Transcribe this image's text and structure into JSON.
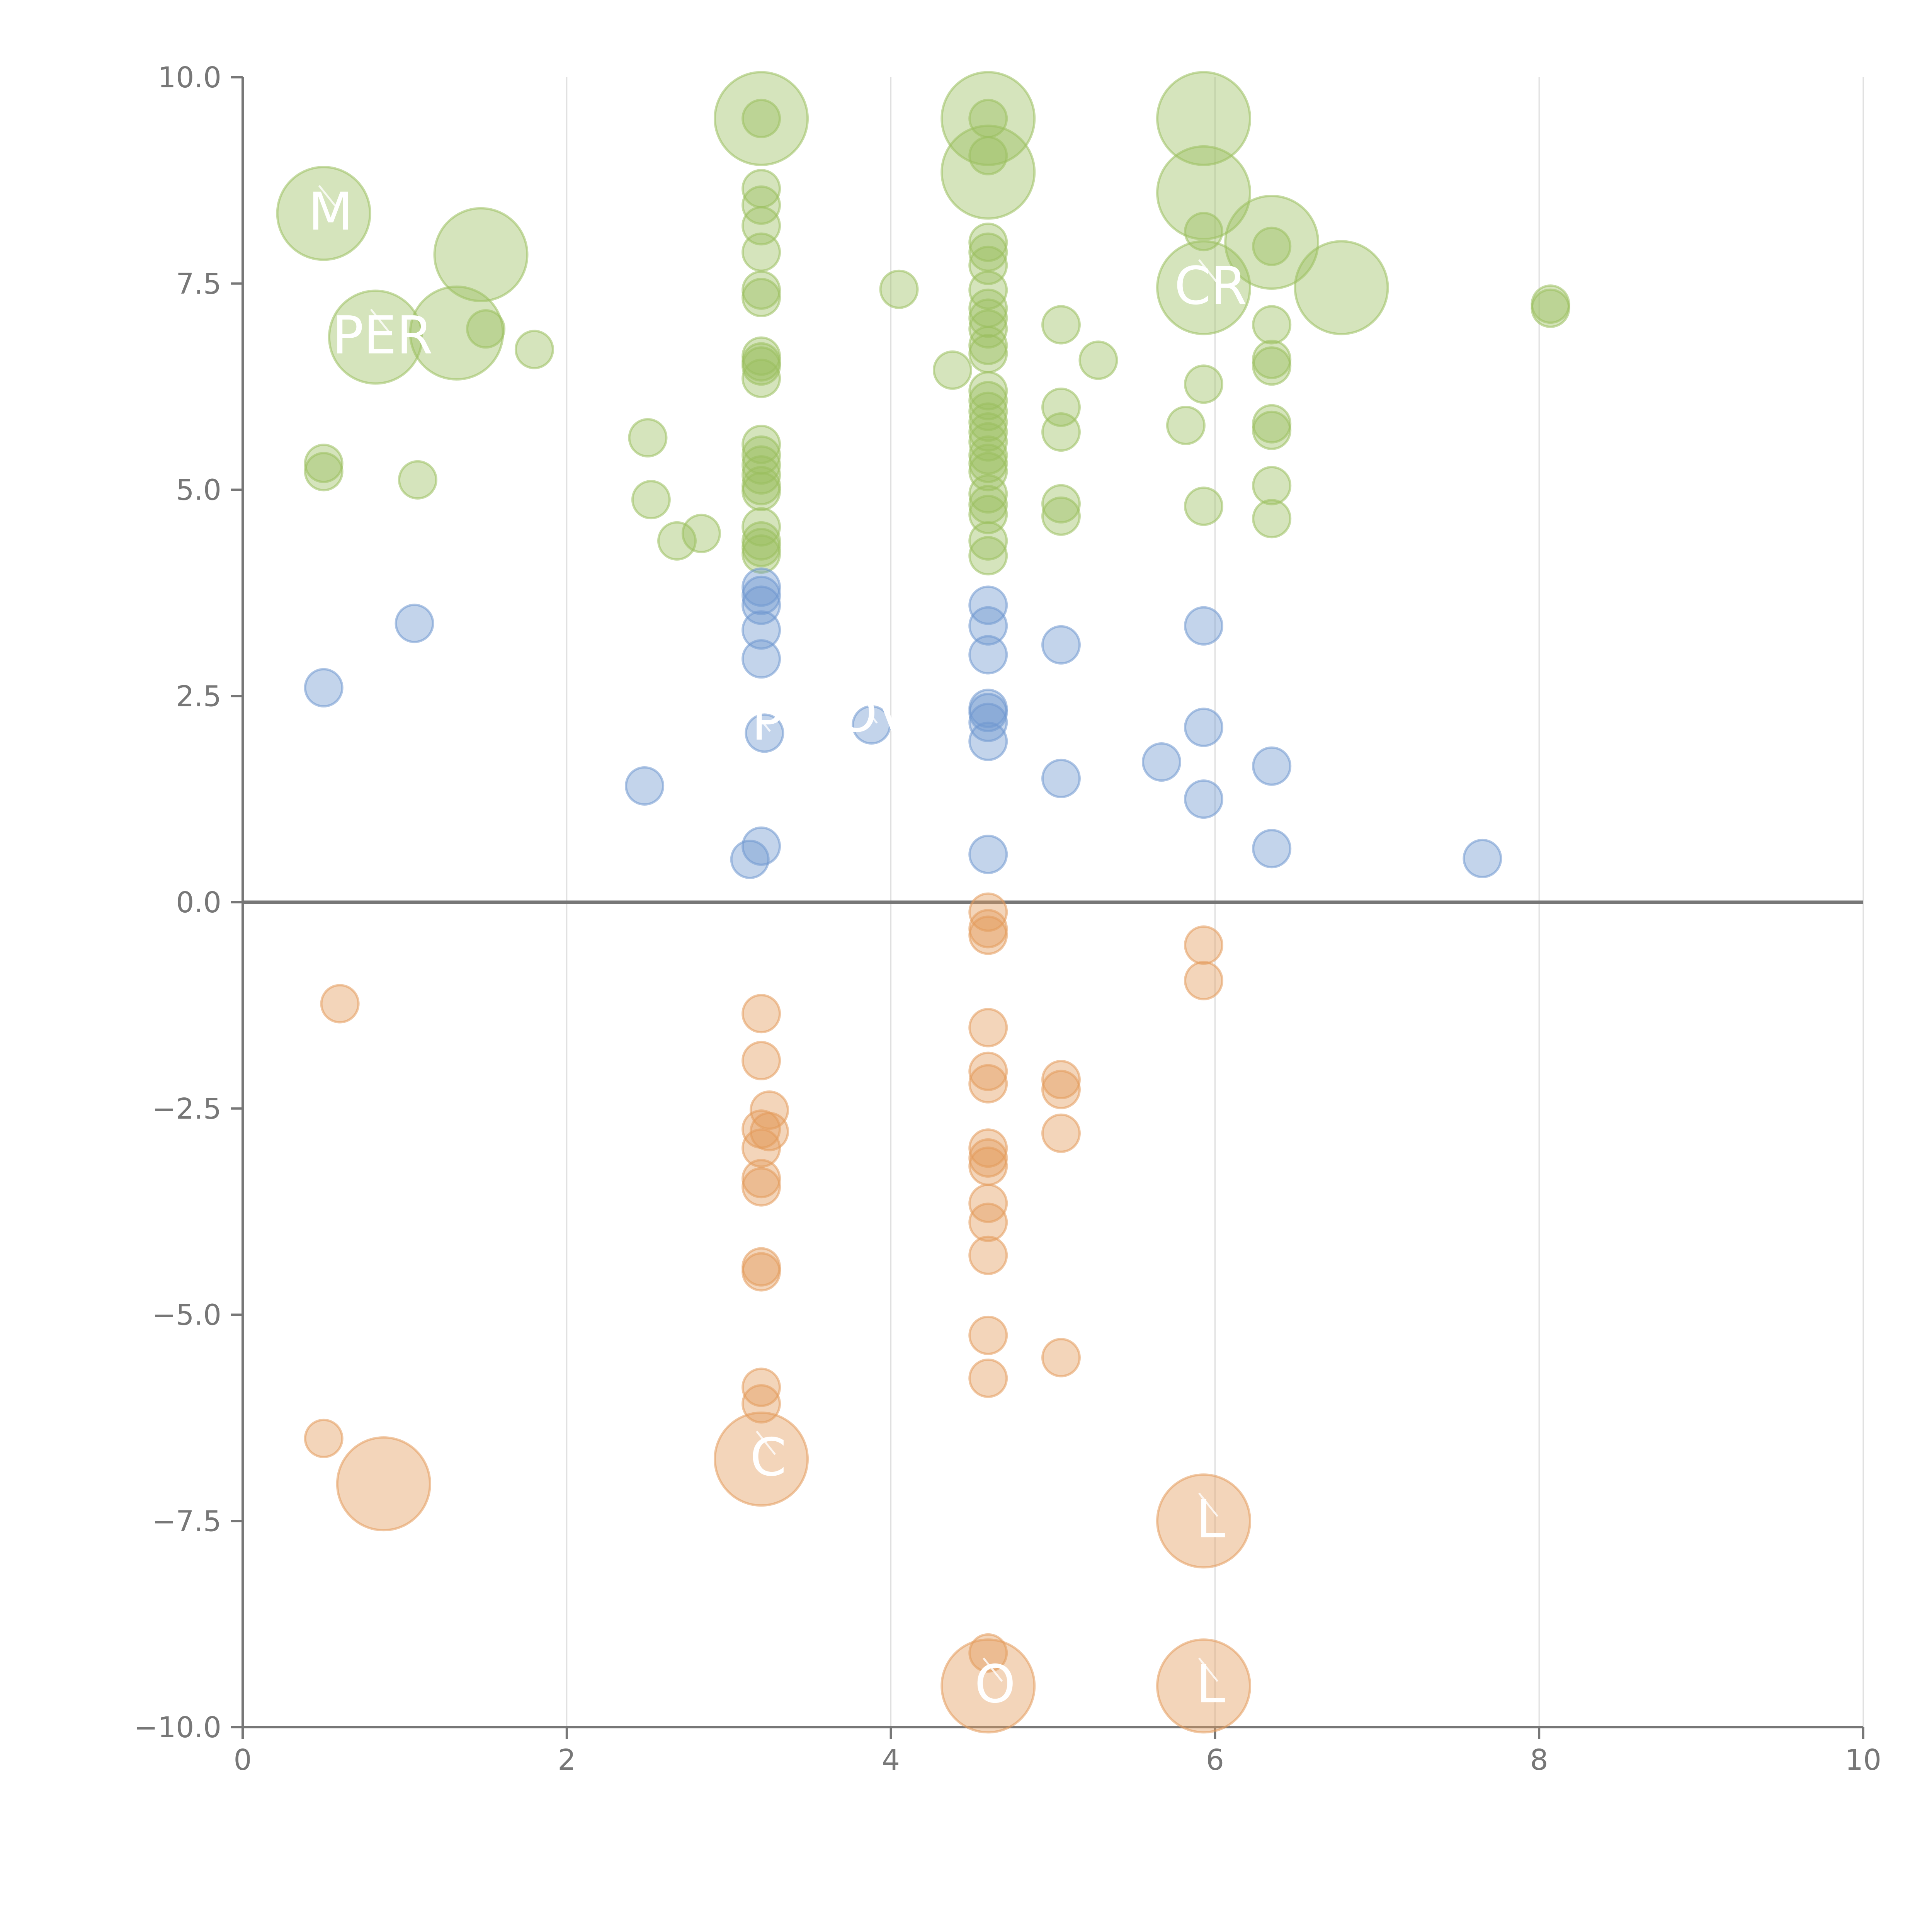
{
  "chart_data": {
    "type": "scatter",
    "title": "",
    "xlabel": "",
    "ylabel": "",
    "xlim": [
      0,
      10
    ],
    "ylim": [
      -10,
      10
    ],
    "x_ticks": [
      0,
      2,
      4,
      6,
      8,
      10
    ],
    "y_ticks": [
      10,
      7.5,
      5,
      2.5,
      0,
      -2.5,
      -5,
      -7.5,
      -10
    ],
    "x_tick_labels": [
      "0",
      "2",
      "4",
      "6",
      "8",
      "10"
    ],
    "y_tick_labels": [
      "10.0",
      "7.5",
      "5.0",
      "2.5",
      "0.0",
      "−2.5",
      "−5.0",
      "−7.5",
      "−10.0"
    ],
    "grid": "vertical gridlines at x ticks",
    "zero_line": 0,
    "legend": "none",
    "series": [
      {
        "color": "#9bbf5f",
        "points": [
          {
            "x": 0.5,
            "y": 8.35,
            "r": 2.5,
            "label": "M"
          },
          {
            "x": 0.82,
            "y": 6.85,
            "r": 2.5,
            "label": "PER"
          },
          {
            "x": 1.32,
            "y": 6.9,
            "r": 2.5
          },
          {
            "x": 1.47,
            "y": 7.85,
            "r": 2.5
          },
          {
            "x": 1.5,
            "y": 6.95
          },
          {
            "x": 1.8,
            "y": 6.7
          },
          {
            "x": 0.5,
            "y": 5.32
          },
          {
            "x": 0.5,
            "y": 5.22
          },
          {
            "x": 1.08,
            "y": 5.12
          },
          {
            "x": 2.5,
            "y": 5.63
          },
          {
            "x": 2.52,
            "y": 4.88
          },
          {
            "x": 2.68,
            "y": 4.38
          },
          {
            "x": 2.83,
            "y": 4.47
          },
          {
            "x": 3.2,
            "y": 9.5,
            "r": 2.5
          },
          {
            "x": 3.2,
            "y": 9.5
          },
          {
            "x": 3.2,
            "y": 8.65
          },
          {
            "x": 3.2,
            "y": 8.45
          },
          {
            "x": 3.2,
            "y": 8.2
          },
          {
            "x": 3.2,
            "y": 7.88
          },
          {
            "x": 3.2,
            "y": 7.42
          },
          {
            "x": 3.2,
            "y": 7.33
          },
          {
            "x": 3.2,
            "y": 6.62
          },
          {
            "x": 3.2,
            "y": 6.55
          },
          {
            "x": 3.2,
            "y": 6.5
          },
          {
            "x": 3.2,
            "y": 6.35
          },
          {
            "x": 3.2,
            "y": 5.55
          },
          {
            "x": 3.2,
            "y": 5.42
          },
          {
            "x": 3.2,
            "y": 5.3
          },
          {
            "x": 3.2,
            "y": 5.18
          },
          {
            "x": 3.2,
            "y": 5.05
          },
          {
            "x": 3.2,
            "y": 4.98
          },
          {
            "x": 3.2,
            "y": 4.55
          },
          {
            "x": 3.2,
            "y": 4.38
          },
          {
            "x": 3.2,
            "y": 4.3
          },
          {
            "x": 3.2,
            "y": 4.22
          },
          {
            "x": 4.05,
            "y": 7.43
          },
          {
            "x": 4.38,
            "y": 6.45
          },
          {
            "x": 4.6,
            "y": 9.5,
            "r": 2.5
          },
          {
            "x": 4.6,
            "y": 9.5
          },
          {
            "x": 4.6,
            "y": 8.85,
            "r": 2.5
          },
          {
            "x": 4.6,
            "y": 9.05
          },
          {
            "x": 4.6,
            "y": 8.0
          },
          {
            "x": 4.6,
            "y": 7.88
          },
          {
            "x": 4.6,
            "y": 7.72
          },
          {
            "x": 4.6,
            "y": 7.42
          },
          {
            "x": 4.6,
            "y": 7.2
          },
          {
            "x": 4.6,
            "y": 7.08
          },
          {
            "x": 4.6,
            "y": 6.95
          },
          {
            "x": 4.6,
            "y": 6.75
          },
          {
            "x": 4.6,
            "y": 6.65
          },
          {
            "x": 4.6,
            "y": 6.2
          },
          {
            "x": 4.6,
            "y": 6.08
          },
          {
            "x": 4.6,
            "y": 5.95
          },
          {
            "x": 4.6,
            "y": 5.82
          },
          {
            "x": 4.6,
            "y": 5.7
          },
          {
            "x": 4.6,
            "y": 5.58
          },
          {
            "x": 4.6,
            "y": 5.42
          },
          {
            "x": 4.6,
            "y": 5.32
          },
          {
            "x": 4.6,
            "y": 5.22
          },
          {
            "x": 4.6,
            "y": 4.95
          },
          {
            "x": 4.6,
            "y": 4.82
          },
          {
            "x": 4.6,
            "y": 4.7
          },
          {
            "x": 4.6,
            "y": 4.38
          },
          {
            "x": 4.6,
            "y": 4.2
          },
          {
            "x": 5.05,
            "y": 7.0
          },
          {
            "x": 5.28,
            "y": 6.57
          },
          {
            "x": 5.05,
            "y": 6.0
          },
          {
            "x": 5.05,
            "y": 5.7
          },
          {
            "x": 5.05,
            "y": 4.83
          },
          {
            "x": 5.05,
            "y": 4.68
          },
          {
            "x": 5.93,
            "y": 9.5,
            "r": 2.5
          },
          {
            "x": 5.93,
            "y": 8.6,
            "r": 2.5
          },
          {
            "x": 5.93,
            "y": 8.13
          },
          {
            "x": 5.93,
            "y": 7.45,
            "r": 2.5,
            "label": "CR"
          },
          {
            "x": 5.93,
            "y": 6.28
          },
          {
            "x": 5.82,
            "y": 5.78
          },
          {
            "x": 5.93,
            "y": 4.8
          },
          {
            "x": 6.35,
            "y": 8.0,
            "r": 2.5
          },
          {
            "x": 6.35,
            "y": 7.95
          },
          {
            "x": 6.35,
            "y": 7.0
          },
          {
            "x": 6.35,
            "y": 6.58
          },
          {
            "x": 6.35,
            "y": 6.5
          },
          {
            "x": 6.35,
            "y": 5.8
          },
          {
            "x": 6.35,
            "y": 5.72
          },
          {
            "x": 6.35,
            "y": 5.05
          },
          {
            "x": 6.35,
            "y": 4.65
          },
          {
            "x": 6.78,
            "y": 7.45,
            "r": 2.5
          },
          {
            "x": 8.07,
            "y": 7.25
          },
          {
            "x": 8.07,
            "y": 7.2
          }
        ]
      },
      {
        "color": "#6f98cf",
        "points": [
          {
            "x": 0.5,
            "y": 2.6
          },
          {
            "x": 1.06,
            "y": 3.38
          },
          {
            "x": 2.48,
            "y": 1.41
          },
          {
            "x": 3.13,
            "y": 0.52
          },
          {
            "x": 3.2,
            "y": 0.68
          },
          {
            "x": 3.2,
            "y": 3.82
          },
          {
            "x": 3.2,
            "y": 3.72
          },
          {
            "x": 3.2,
            "y": 3.6
          },
          {
            "x": 3.2,
            "y": 3.3
          },
          {
            "x": 3.2,
            "y": 2.95
          },
          {
            "x": 3.22,
            "y": 2.05,
            "label": "P"
          },
          {
            "x": 3.88,
            "y": 2.15,
            "label": "OV"
          },
          {
            "x": 4.6,
            "y": 3.6
          },
          {
            "x": 4.6,
            "y": 3.35
          },
          {
            "x": 4.6,
            "y": 3.0
          },
          {
            "x": 4.6,
            "y": 2.35
          },
          {
            "x": 4.6,
            "y": 2.3
          },
          {
            "x": 4.6,
            "y": 2.18
          },
          {
            "x": 4.6,
            "y": 1.95
          },
          {
            "x": 4.6,
            "y": 0.58
          },
          {
            "x": 5.05,
            "y": 3.12
          },
          {
            "x": 5.05,
            "y": 1.5
          },
          {
            "x": 5.67,
            "y": 1.7
          },
          {
            "x": 5.93,
            "y": 3.35
          },
          {
            "x": 5.93,
            "y": 2.12
          },
          {
            "x": 5.93,
            "y": 1.25
          },
          {
            "x": 6.35,
            "y": 1.65
          },
          {
            "x": 6.35,
            "y": 0.65
          },
          {
            "x": 7.65,
            "y": 0.53
          }
        ]
      },
      {
        "color": "#e39a5b",
        "points": [
          {
            "x": 0.6,
            "y": -1.23
          },
          {
            "x": 0.5,
            "y": -6.5
          },
          {
            "x": 0.87,
            "y": -7.05,
            "r": 2.5
          },
          {
            "x": 3.2,
            "y": -1.35
          },
          {
            "x": 3.2,
            "y": -1.92
          },
          {
            "x": 3.25,
            "y": -2.52
          },
          {
            "x": 3.2,
            "y": -2.75
          },
          {
            "x": 3.25,
            "y": -2.78
          },
          {
            "x": 3.2,
            "y": -2.98
          },
          {
            "x": 3.2,
            "y": -3.35
          },
          {
            "x": 3.2,
            "y": -3.45
          },
          {
            "x": 3.2,
            "y": -4.42
          },
          {
            "x": 3.2,
            "y": -4.48
          },
          {
            "x": 3.2,
            "y": -5.88
          },
          {
            "x": 3.2,
            "y": -6.08
          },
          {
            "x": 3.2,
            "y": -6.75,
            "r": 2.5,
            "label": "C"
          },
          {
            "x": 4.6,
            "y": -0.12
          },
          {
            "x": 4.6,
            "y": -0.32
          },
          {
            "x": 4.6,
            "y": -0.4
          },
          {
            "x": 4.6,
            "y": -1.52
          },
          {
            "x": 4.6,
            "y": -2.05
          },
          {
            "x": 4.6,
            "y": -2.2
          },
          {
            "x": 4.6,
            "y": -2.98
          },
          {
            "x": 4.6,
            "y": -3.1
          },
          {
            "x": 4.6,
            "y": -3.2
          },
          {
            "x": 4.6,
            "y": -3.65
          },
          {
            "x": 4.6,
            "y": -3.88
          },
          {
            "x": 4.6,
            "y": -4.28
          },
          {
            "x": 4.6,
            "y": -5.25
          },
          {
            "x": 4.6,
            "y": -5.77
          },
          {
            "x": 4.6,
            "y": -9.1
          },
          {
            "x": 4.6,
            "y": -9.5,
            "r": 2.5,
            "label": "O"
          },
          {
            "x": 5.05,
            "y": -2.15
          },
          {
            "x": 5.05,
            "y": -2.27
          },
          {
            "x": 5.05,
            "y": -2.8
          },
          {
            "x": 5.05,
            "y": -5.52
          },
          {
            "x": 5.93,
            "y": -0.52
          },
          {
            "x": 5.93,
            "y": -0.95
          },
          {
            "x": 5.93,
            "y": -7.5,
            "r": 2.5,
            "label": "L"
          },
          {
            "x": 5.93,
            "y": -9.5,
            "r": 2.5,
            "label": "L"
          }
        ]
      }
    ]
  }
}
